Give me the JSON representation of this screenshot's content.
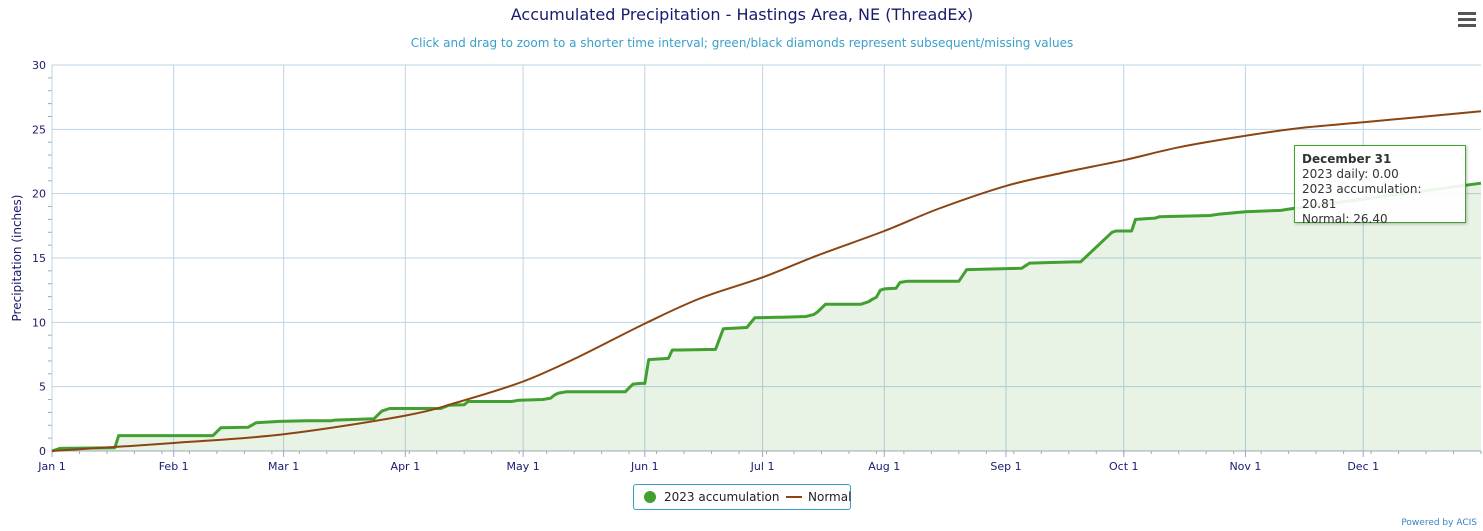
{
  "chart_data": {
    "type": "line",
    "title": "Accumulated Precipitation - Hastings Area, NE (ThreadEx)",
    "subtitle": "Click and drag to zoom to a shorter time interval; green/black diamonds represent subsequent/missing values",
    "ylabel": "Precipitation (inches)",
    "xlabel": "",
    "ylim": [
      0,
      30
    ],
    "yticks": [
      "0",
      "5",
      "10",
      "15",
      "20",
      "25",
      "30"
    ],
    "xticks": [
      "Jan 1",
      "Feb 1",
      "Mar 1",
      "Apr 1",
      "May 1",
      "Jun 1",
      "Jul 1",
      "Aug 1",
      "Sep 1",
      "Oct 1",
      "Nov 1",
      "Dec 1"
    ],
    "grid": true,
    "legend": "bottom-center",
    "series": [
      {
        "name": "2023 accumulation",
        "color": "#41a030",
        "x": [
          "Jan 1",
          "Jan 3",
          "Jan 17",
          "Jan 18",
          "Feb 11",
          "Feb 13",
          "Feb 20",
          "Feb 22",
          "Feb 28",
          "Mar 7",
          "Mar 13",
          "Mar 14",
          "Mar 24",
          "Mar 26",
          "Mar 28",
          "Apr 10",
          "Apr 12",
          "Apr 16",
          "Apr 17",
          "Apr 28",
          "Apr 30",
          "May 6",
          "May 8",
          "May 9",
          "May 10",
          "May 12",
          "May 27",
          "May 29",
          "May 31",
          "Jun 1",
          "Jun 2",
          "Jun 7",
          "Jun 8",
          "Jun 10",
          "Jun 19",
          "Jun 21",
          "Jun 27",
          "Jun 29",
          "Jul 5",
          "Jul 6",
          "Jul 12",
          "Jul 14",
          "Jul 15",
          "Jul 17",
          "Jul 26",
          "Jul 28",
          "Jul 29",
          "Jul 30",
          "Jul 31",
          "Aug 1",
          "Aug 4",
          "Aug 5",
          "Aug 7",
          "Aug 20",
          "Aug 22",
          "Sep 5",
          "Sep 7",
          "Sep 18",
          "Sep 20",
          "Sep 28",
          "Sep 29",
          "Oct 3",
          "Oct 4",
          "Oct 9",
          "Oct 10",
          "Oct 23",
          "Oct 25",
          "Nov 1",
          "Nov 10",
          "Nov 12",
          "Dec 31"
        ],
        "values": [
          0.0,
          0.2,
          0.25,
          1.2,
          1.2,
          1.8,
          1.85,
          2.2,
          2.3,
          2.35,
          2.35,
          2.4,
          2.5,
          3.1,
          3.3,
          3.3,
          3.55,
          3.6,
          3.85,
          3.85,
          3.95,
          4.0,
          4.1,
          4.35,
          4.5,
          4.6,
          4.6,
          5.2,
          5.25,
          5.25,
          7.1,
          7.2,
          7.85,
          7.85,
          7.9,
          9.5,
          9.6,
          10.35,
          10.4,
          10.4,
          10.45,
          10.6,
          10.8,
          11.4,
          11.4,
          11.6,
          11.8,
          11.95,
          12.5,
          12.6,
          12.65,
          13.1,
          13.2,
          13.2,
          14.1,
          14.2,
          14.6,
          14.7,
          14.7,
          17.0,
          17.1,
          17.1,
          18.0,
          18.1,
          18.2,
          18.3,
          18.4,
          18.6,
          18.7,
          18.8,
          20.81
        ]
      },
      {
        "name": "Normal",
        "color": "#8b4513",
        "x": [
          "Jan 1",
          "Feb 1",
          "Mar 1",
          "Apr 1",
          "Apr 15",
          "May 1",
          "May 15",
          "Jun 1",
          "Jun 15",
          "Jul 1",
          "Jul 15",
          "Aug 1",
          "Aug 15",
          "Sep 1",
          "Sep 15",
          "Oct 1",
          "Oct 15",
          "Nov 1",
          "Nov 15",
          "Dec 1",
          "Dec 31"
        ],
        "values": [
          0.0,
          0.62,
          1.3,
          2.75,
          3.85,
          5.4,
          7.3,
          9.9,
          11.85,
          13.5,
          15.2,
          17.1,
          18.85,
          20.6,
          21.6,
          22.6,
          23.6,
          24.5,
          25.1,
          25.55,
          26.4
        ]
      }
    ]
  },
  "tooltip": {
    "date": "December 31",
    "line1": "2023 daily: 0.00",
    "line2": "2023 accumulation: 20.81",
    "line3": "Normal: 26.40"
  },
  "legend": {
    "item1": "2023 accumulation",
    "item2": "Normal"
  },
  "credit": "Powered by ACIS"
}
